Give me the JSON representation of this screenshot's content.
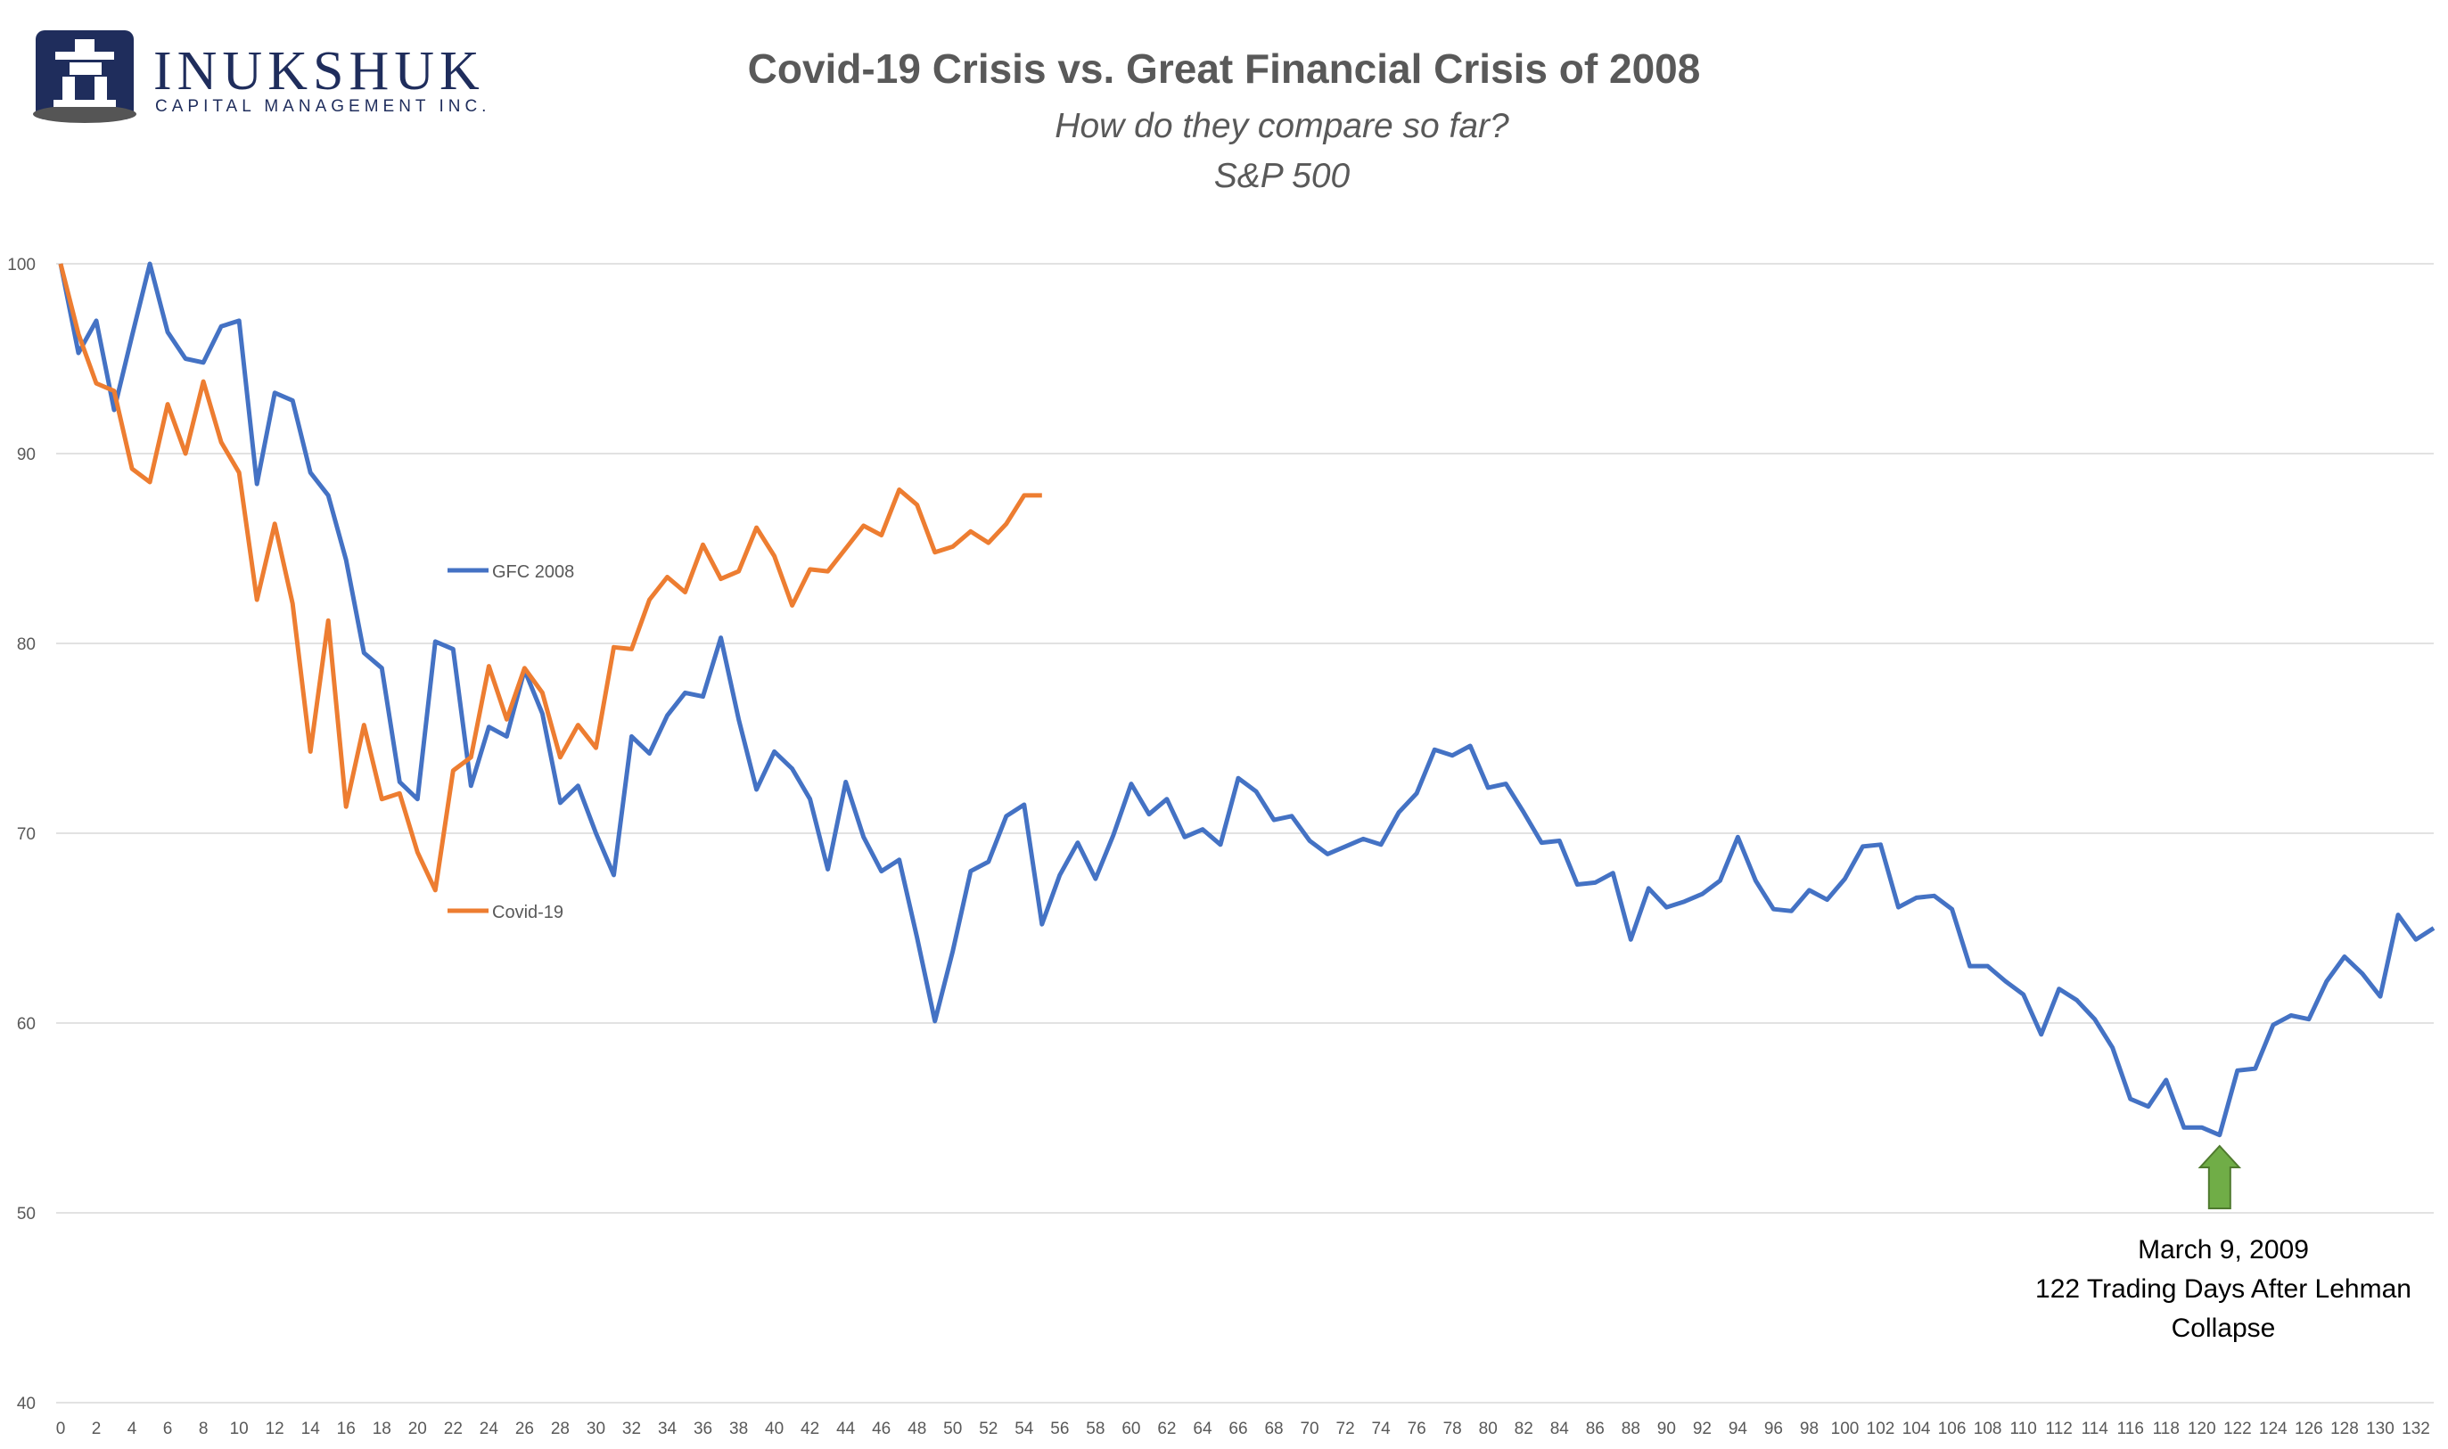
{
  "logo": {
    "name": "INUKSHUK",
    "subtitle": "CAPITAL MANAGEMENT INC."
  },
  "chart_data": {
    "type": "line",
    "title": "Covid-19 Crisis vs. Great Financial Crisis of 2008",
    "subtitle": "How do they compare so far?",
    "subtitle2": "S&P 500",
    "xlabel": "",
    "ylabel": "",
    "xlim": [
      0,
      133
    ],
    "ylim": [
      40,
      100
    ],
    "yticks": [
      40,
      50,
      60,
      70,
      80,
      90,
      100
    ],
    "xticks": [
      0,
      2,
      4,
      6,
      8,
      10,
      12,
      14,
      16,
      18,
      20,
      22,
      24,
      26,
      28,
      30,
      32,
      34,
      36,
      38,
      40,
      42,
      44,
      46,
      48,
      50,
      52,
      54,
      56,
      58,
      60,
      62,
      64,
      66,
      68,
      70,
      72,
      74,
      76,
      78,
      80,
      82,
      84,
      86,
      88,
      90,
      92,
      94,
      96,
      98,
      100,
      102,
      104,
      106,
      108,
      110,
      112,
      114,
      116,
      118,
      120,
      122,
      124,
      126,
      128,
      130,
      132
    ],
    "grid": "horizontal",
    "legend": "inline",
    "series": [
      {
        "name": "GFC 2008",
        "color": "#4472c4",
        "values": [
          100,
          95.3,
          97,
          92.3,
          96.2,
          100,
          96.4,
          95,
          94.8,
          96.7,
          97,
          88.4,
          93.2,
          92.8,
          89,
          87.8,
          84.4,
          79.5,
          78.7,
          72.7,
          71.8,
          80.1,
          79.7,
          72.5,
          75.6,
          75.1,
          78.6,
          76.3,
          71.6,
          72.5,
          70,
          67.8,
          75.1,
          74.2,
          76.2,
          77.4,
          77.2,
          80.3,
          76,
          72.3,
          74.3,
          73.4,
          71.8,
          68.1,
          72.7,
          69.8,
          68,
          68.6,
          64.5,
          60.1,
          63.8,
          68,
          68.5,
          70.9,
          71.5,
          65.2,
          67.8,
          69.5,
          67.6,
          69.9,
          72.6,
          71,
          71.8,
          69.8,
          70.2,
          69.4,
          72.9,
          72.2,
          70.7,
          70.9,
          69.6,
          68.9,
          69.3,
          69.7,
          69.4,
          71.1,
          72.1,
          74.4,
          74.1,
          74.6,
          72.4,
          72.6,
          71.1,
          69.5,
          69.6,
          67.3,
          67.4,
          67.9,
          64.4,
          67.1,
          66.1,
          66.4,
          66.8,
          67.5,
          69.8,
          67.5,
          66,
          65.9,
          67,
          66.5,
          67.6,
          69.3,
          69.4,
          66.1,
          66.6,
          66.7,
          66,
          63,
          63,
          62.2,
          61.5,
          59.4,
          61.8,
          61.2,
          60.2,
          58.7,
          56,
          55.6,
          57,
          54.5,
          54.5,
          54.1,
          57.5,
          57.6,
          59.9,
          60.4,
          60.2,
          62.2,
          63.5,
          62.6,
          61.4,
          65.7,
          64.4,
          65
        ]
      },
      {
        "name": "Covid-19",
        "color": "#ed7d31",
        "values": [
          100,
          96.3,
          93.7,
          93.3,
          89.2,
          88.5,
          92.6,
          90,
          93.8,
          90.6,
          89,
          82.3,
          86.3,
          82.1,
          74.3,
          81.2,
          71.4,
          75.7,
          71.8,
          72.1,
          69,
          67,
          73.3,
          74,
          78.8,
          76,
          78.7,
          77.4,
          74,
          75.7,
          74.5,
          79.8,
          79.7,
          82.3,
          83.5,
          82.7,
          85.2,
          83.4,
          83.8,
          86.1,
          84.6,
          82,
          83.9,
          83.8,
          85,
          86.2,
          85.7,
          88.1,
          87.3,
          84.8,
          85.1,
          85.9,
          85.3,
          86.3,
          87.8,
          87.8
        ]
      }
    ],
    "annotation": {
      "x": 121,
      "lines": [
        "March 9, 2009",
        "122 Trading Days After Lehman",
        "Collapse"
      ],
      "arrow_color": "#70ad47"
    }
  }
}
